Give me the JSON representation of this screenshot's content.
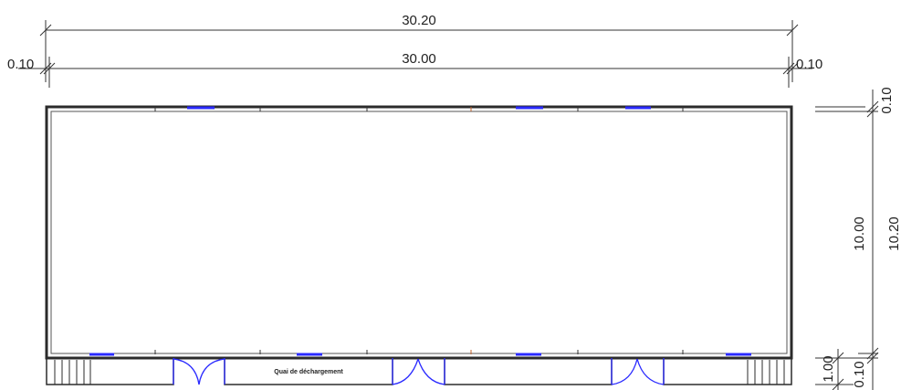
{
  "dimensions": {
    "overall_width": "30.20",
    "inner_width": "30.00",
    "left_offset": "0.10",
    "right_offset": "0.10",
    "top_wall": "0.10",
    "inner_height": "10.00",
    "overall_height": "10.20",
    "dock_depth": "1.00",
    "bottom_wall": "0.10"
  },
  "labels": {
    "dock": "Quai de déchargement"
  },
  "colors": {
    "wall": "#2b2b2b",
    "opening": "#2a2aff",
    "marker": "#c0602a",
    "dimension": "#222222"
  }
}
